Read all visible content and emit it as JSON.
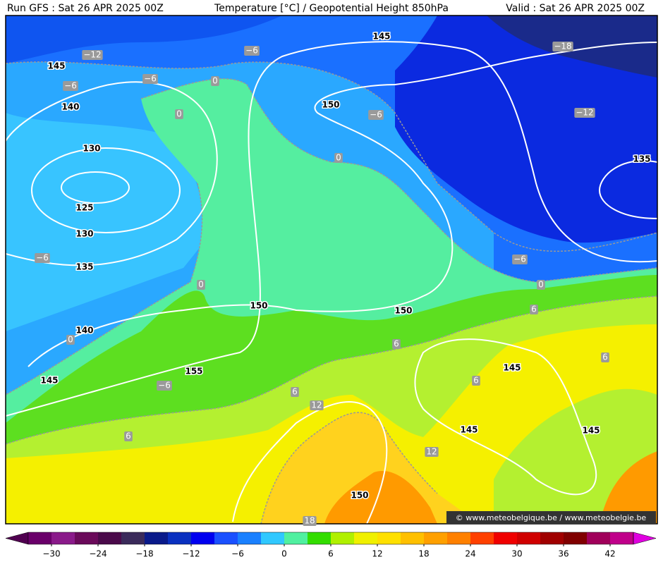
{
  "header": {
    "left": "Run GFS : Sat 26 APR 2025 00Z",
    "center": "Temperature [°C] / Geopotential Height 850hPa",
    "right": "Valid : Sat 26 APR 2025 00Z"
  },
  "height_labels": [
    "145",
    "145",
    "140",
    "150",
    "130",
    "135",
    "125",
    "130",
    "135",
    "150",
    "150",
    "140",
    "145",
    "155",
    "145",
    "145",
    "145",
    "150"
  ],
  "temperature_labels": [
    "−12",
    "−6",
    "−6",
    "−6",
    "0",
    "0",
    "−6",
    "−18",
    "−12",
    "0",
    "−6",
    "−6",
    "0",
    "0",
    "6",
    "0",
    "6",
    "6",
    "−6",
    "6",
    "6",
    "12",
    "6",
    "12",
    "18"
  ],
  "watermark": "© www.meteobelgique.be / www.meteobelgie.be",
  "colorbar": {
    "ticks": [
      {
        "value": -30,
        "label": "−30"
      },
      {
        "value": -24,
        "label": "−24"
      },
      {
        "value": -18,
        "label": "−18"
      },
      {
        "value": -12,
        "label": "−12"
      },
      {
        "value": -6,
        "label": "−6"
      },
      0,
      6,
      12,
      18,
      24,
      30,
      36,
      42
    ],
    "colors": [
      "#6a006a",
      "#8a1a8a",
      "#6a0a5a",
      "#4a0a4a",
      "#3a2a5a",
      "#0a1a8a",
      "#0a30c0",
      "#0000f0",
      "#1a50ff",
      "#1a80ff",
      "#30c8ff",
      "#50f0a0",
      "#33dd00",
      "#b0f000",
      "#f0f000",
      "#ffe000",
      "#ffc000",
      "#ffa000",
      "#ff8000",
      "#ff4000",
      "#f00000",
      "#d00000",
      "#a00000",
      "#800000",
      "#a0005a",
      "#c0008a"
    ],
    "under_color": "#500050",
    "over_color": "#e000e0"
  }
}
